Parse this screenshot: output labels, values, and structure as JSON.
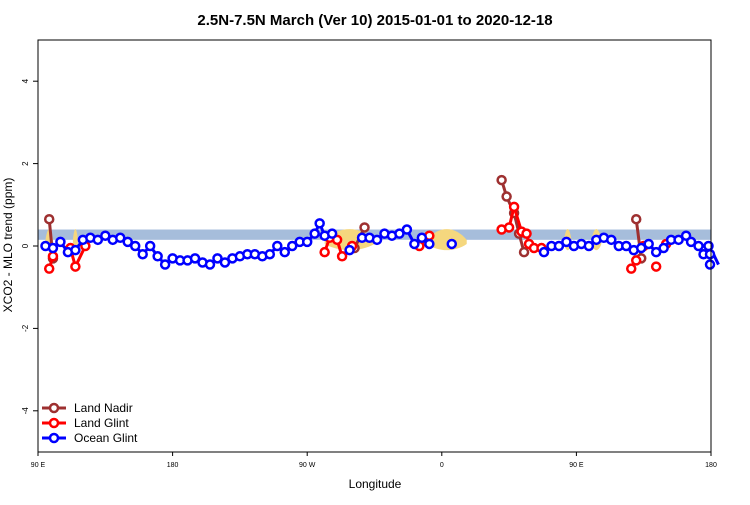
{
  "chart_data": {
    "type": "line",
    "title": "2.5N-7.5N March (Ver 10)   2015-01-01 to 2020-12-18",
    "xlabel": "Longitude",
    "ylabel": "XCO2 - MLO trend (ppm)",
    "xlim": [
      -90,
      180
    ],
    "ylim": [
      -5,
      5
    ],
    "x_ticks": [
      {
        "value": -90,
        "label": "90 E"
      },
      {
        "value": -36,
        "label": "180"
      },
      {
        "value": 18,
        "label": "90 W"
      },
      {
        "value": 72,
        "label": "0"
      },
      {
        "value": 126,
        "label": "90 E"
      },
      {
        "value": 180,
        "label": "180"
      }
    ],
    "y_ticks": [
      -4,
      -2,
      0,
      2,
      4
    ],
    "grid": false,
    "legend_position": "bottom-left",
    "background_band": {
      "y_range": [
        0.15,
        0.4
      ],
      "color": "#a6bddb"
    },
    "land_mask_color": "#f5d77e",
    "land_regions": [
      [
        -87,
        -84
      ],
      [
        -76,
        -74
      ],
      [
        25,
        45
      ],
      [
        66,
        82
      ],
      [
        121,
        124
      ],
      [
        132,
        136
      ]
    ],
    "series": [
      {
        "name": "Land Nadir",
        "color": "#9e3030",
        "points": [
          [
            -85.5,
            0.65
          ],
          [
            -84,
            -0.3
          ],
          [
            41,
            0.45
          ],
          [
            37,
            -0.05
          ],
          [
            96,
            1.6
          ],
          [
            98,
            1.2
          ],
          [
            101,
            0.8
          ],
          [
            103,
            0.3
          ],
          [
            105,
            -0.15
          ],
          [
            150,
            0.65
          ],
          [
            152,
            -0.3
          ]
        ]
      },
      {
        "name": "Land Glint",
        "color": "#ff0000",
        "points": [
          [
            -85.5,
            -0.55
          ],
          [
            -84,
            -0.25
          ],
          [
            -77,
            -0.05
          ],
          [
            -75,
            -0.5
          ],
          [
            -71,
            0.0
          ],
          [
            25,
            -0.15
          ],
          [
            27,
            0.2
          ],
          [
            30,
            0.15
          ],
          [
            32,
            -0.25
          ],
          [
            36,
            0.0
          ],
          [
            63,
            0.0
          ],
          [
            67,
            0.25
          ],
          [
            96,
            0.4
          ],
          [
            99,
            0.45
          ],
          [
            101,
            0.95
          ],
          [
            104,
            0.35
          ],
          [
            106,
            0.3
          ],
          [
            107,
            0.05
          ],
          [
            109,
            -0.05
          ],
          [
            112,
            -0.05
          ],
          [
            148,
            -0.55
          ],
          [
            150,
            -0.35
          ],
          [
            158,
            -0.5
          ],
          [
            153,
            0.0
          ],
          [
            162,
            0.05
          ]
        ]
      },
      {
        "name": "Ocean Glint",
        "color": "#0000ff",
        "points": [
          [
            -87,
            0.0
          ],
          [
            -84,
            -0.05
          ],
          [
            -81,
            0.1
          ],
          [
            -78,
            -0.15
          ],
          [
            -75,
            -0.1
          ],
          [
            -72,
            0.15
          ],
          [
            -69,
            0.2
          ],
          [
            -66,
            0.15
          ],
          [
            -63,
            0.25
          ],
          [
            -60,
            0.15
          ],
          [
            -57,
            0.2
          ],
          [
            -54,
            0.1
          ],
          [
            -51,
            0.0
          ],
          [
            -48,
            -0.2
          ],
          [
            -45,
            0.0
          ],
          [
            -42,
            -0.25
          ],
          [
            -39,
            -0.45
          ],
          [
            -36,
            -0.3
          ],
          [
            -33,
            -0.35
          ],
          [
            -30,
            -0.35
          ],
          [
            -27,
            -0.3
          ],
          [
            -24,
            -0.4
          ],
          [
            -21,
            -0.45
          ],
          [
            -18,
            -0.3
          ],
          [
            -15,
            -0.4
          ],
          [
            -12,
            -0.3
          ],
          [
            -9,
            -0.25
          ],
          [
            -6,
            -0.2
          ],
          [
            -3,
            -0.2
          ],
          [
            0,
            -0.25
          ],
          [
            3,
            -0.2
          ],
          [
            6,
            0.0
          ],
          [
            9,
            -0.15
          ],
          [
            12,
            0.0
          ],
          [
            15,
            0.1
          ],
          [
            18,
            0.1
          ],
          [
            21,
            0.3
          ],
          [
            23,
            0.55
          ],
          [
            25,
            0.25
          ],
          [
            28,
            0.3
          ],
          [
            35,
            -0.1
          ],
          [
            40,
            0.2
          ],
          [
            43,
            0.2
          ],
          [
            46,
            0.15
          ],
          [
            49,
            0.3
          ],
          [
            52,
            0.25
          ],
          [
            55,
            0.3
          ],
          [
            58,
            0.4
          ],
          [
            61,
            0.05
          ],
          [
            64,
            0.2
          ],
          [
            67,
            0.05
          ],
          [
            76,
            0.05
          ],
          [
            113,
            -0.15
          ],
          [
            116,
            0.0
          ],
          [
            119,
            0.0
          ],
          [
            122,
            0.1
          ],
          [
            125,
            0.0
          ],
          [
            128,
            0.05
          ],
          [
            131,
            0.0
          ],
          [
            134,
            0.15
          ],
          [
            137,
            0.2
          ],
          [
            140,
            0.15
          ],
          [
            143,
            0.0
          ],
          [
            146,
            0.0
          ],
          [
            149,
            -0.1
          ],
          [
            152,
            -0.05
          ],
          [
            155,
            0.05
          ],
          [
            158,
            -0.15
          ],
          [
            161,
            -0.05
          ],
          [
            164,
            0.15
          ],
          [
            167,
            0.15
          ],
          [
            170,
            0.25
          ],
          [
            172,
            0.1
          ],
          [
            175,
            0.0
          ],
          [
            177,
            -0.2
          ],
          [
            179,
            0.0
          ],
          [
            181,
            -0.2
          ],
          [
            183,
            -0.45
          ]
        ]
      }
    ]
  }
}
